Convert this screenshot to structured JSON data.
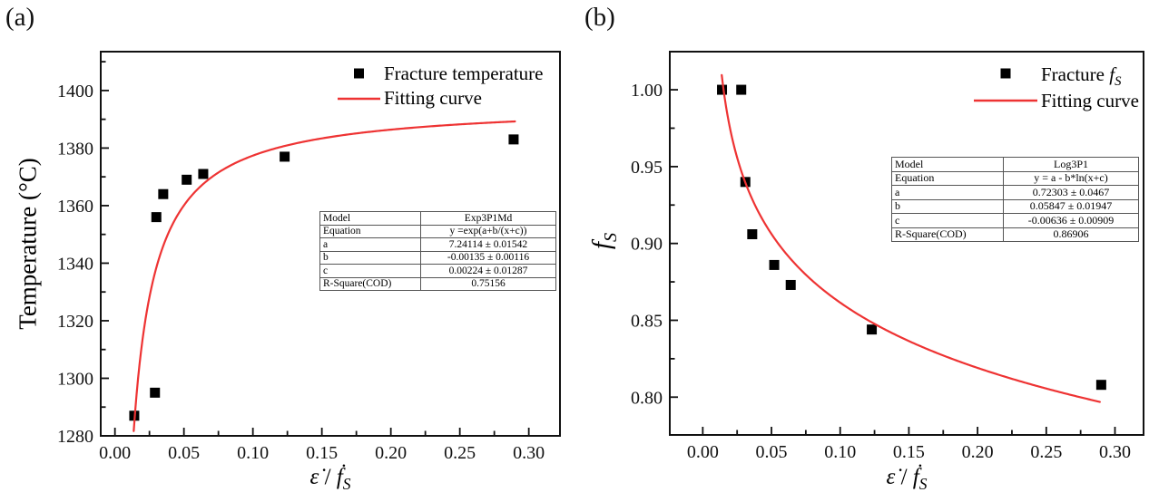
{
  "figure": {
    "background": "#ffffff",
    "accent_red": "#ee3333",
    "marker_color": "#000000",
    "panels": [
      {
        "id": "a",
        "label": "(a)",
        "y_axis_title": {
          "segments": [
            {
              "t": "plain",
              "s": "Temperature (°C)"
            }
          ]
        },
        "x_axis_title": {
          "segments": [
            {
              "t": "i",
              "s": "ε̇"
            },
            {
              "t": "plain",
              "s": " / "
            },
            {
              "t": "i",
              "s": "ḟ"
            },
            {
              "t": "isub",
              "s": "S"
            }
          ]
        },
        "legend": [
          {
            "type": "scatter",
            "label": "Fracture temperature",
            "segments": [
              {
                "t": "plain",
                "s": "Fracture temperature"
              }
            ]
          },
          {
            "type": "line",
            "label": "Fitting curve",
            "segments": [
              {
                "t": "plain",
                "s": "Fitting curve"
              }
            ]
          }
        ],
        "param_table": {
          "rows": [
            [
              "Model",
              "Exp3P1Md"
            ],
            [
              "Equation",
              "y =exp(a+b/(x+c))"
            ],
            [
              "a",
              "7.24114 ± 0.01542"
            ],
            [
              "b",
              "-0.00135 ± 0.00116"
            ],
            [
              "c",
              "0.00224 ± 0.01287"
            ],
            [
              "R-Square(COD)",
              "0.75156"
            ]
          ]
        }
      },
      {
        "id": "b",
        "label": "(b)",
        "y_axis_title": {
          "segments": [
            {
              "t": "i",
              "s": "f"
            },
            {
              "t": "isub",
              "s": "S"
            }
          ]
        },
        "x_axis_title": {
          "segments": [
            {
              "t": "i",
              "s": "ε̇"
            },
            {
              "t": "plain",
              "s": " / "
            },
            {
              "t": "i",
              "s": "ḟ"
            },
            {
              "t": "isub",
              "s": "S"
            }
          ]
        },
        "legend": [
          {
            "type": "scatter",
            "label": "Fracture fS",
            "segments": [
              {
                "t": "plain",
                "s": "Fracture "
              },
              {
                "t": "i",
                "s": "f"
              },
              {
                "t": "isub",
                "s": "S"
              }
            ]
          },
          {
            "type": "line",
            "label": "Fitting curve",
            "segments": [
              {
                "t": "plain",
                "s": "Fitting curve"
              }
            ]
          }
        ],
        "param_table": {
          "rows": [
            [
              "Model",
              "Log3P1"
            ],
            [
              "Equation",
              "y = a - b*ln(x+c)"
            ],
            [
              "a",
              "0.72303 ± 0.0467"
            ],
            [
              "b",
              "0.05847 ± 0.01947"
            ],
            [
              "c",
              "-0.00636 ± 0.00909"
            ],
            [
              "R-Square(COD)",
              "0.86906"
            ]
          ]
        }
      }
    ]
  },
  "chart_data": [
    {
      "type": "scatter",
      "panel": "a",
      "title": "",
      "xlabel": "ε̇ / ḟS",
      "ylabel": "Temperature (°C)",
      "xlim": [
        -0.0103,
        0.3226
      ],
      "ylim": [
        1280,
        1413.5
      ],
      "grid": false,
      "legend_position": "top-right-inside",
      "x_ticks": {
        "values": [
          0,
          0.05,
          0.1,
          0.15,
          0.2,
          0.25,
          0.3
        ],
        "labels": [
          "0.00",
          "0.05",
          "0.10",
          "0.15",
          "0.20",
          "0.25",
          "0.30"
        ],
        "minor": [
          0.025,
          0.075,
          0.125,
          0.175,
          0.225,
          0.275
        ]
      },
      "y_ticks": {
        "values": [
          1280,
          1300,
          1320,
          1340,
          1360,
          1380,
          1400
        ],
        "labels": [
          "1280",
          "1300",
          "1320",
          "1340",
          "1360",
          "1380",
          "1400"
        ],
        "minor": [
          1290,
          1310,
          1330,
          1350,
          1370,
          1390,
          1410
        ]
      },
      "series": [
        {
          "name": "Fracture temperature",
          "kind": "scatter",
          "marker": "square",
          "color": "#000000",
          "points": [
            [
              0.014,
              1287
            ],
            [
              0.029,
              1295
            ],
            [
              0.03,
              1356
            ],
            [
              0.035,
              1364
            ],
            [
              0.052,
              1369
            ],
            [
              0.064,
              1371
            ],
            [
              0.123,
              1377
            ],
            [
              0.289,
              1383
            ]
          ]
        },
        {
          "name": "Fitting curve",
          "kind": "function",
          "color": "#ee3333",
          "equation": "y = exp(a + b/(x+c))",
          "fn": "exp3p1md",
          "params": {
            "a": 7.24114,
            "b": -0.00135,
            "c": 0.00224
          },
          "x_range": [
            0.0136,
            0.29
          ]
        }
      ]
    },
    {
      "type": "scatter",
      "panel": "b",
      "title": "",
      "xlabel": "ε̇ / ḟS",
      "ylabel": "fS",
      "xlim": [
        -0.024,
        0.3208
      ],
      "ylim": [
        0.7754,
        1.0248
      ],
      "grid": false,
      "legend_position": "top-right-inside",
      "x_ticks": {
        "values": [
          0,
          0.05,
          0.1,
          0.15,
          0.2,
          0.25,
          0.3
        ],
        "labels": [
          "0.00",
          "0.05",
          "0.10",
          "0.15",
          "0.20",
          "0.25",
          "0.30"
        ],
        "minor": [
          0.025,
          0.075,
          0.125,
          0.175,
          0.225,
          0.275
        ]
      },
      "y_ticks": {
        "values": [
          0.8,
          0.85,
          0.9,
          0.95,
          1.0
        ],
        "labels": [
          "0.80",
          "0.85",
          "0.90",
          "0.95",
          "1.00"
        ],
        "minor": [
          0.825,
          0.875,
          0.925,
          0.975
        ]
      },
      "series": [
        {
          "name": "Fracture fS",
          "kind": "scatter",
          "marker": "square",
          "color": "#000000",
          "points": [
            [
              0.014,
              1.0
            ],
            [
              0.028,
              1.0
            ],
            [
              0.031,
              0.94
            ],
            [
              0.036,
              0.906
            ],
            [
              0.052,
              0.886
            ],
            [
              0.064,
              0.873
            ],
            [
              0.123,
              0.844
            ],
            [
              0.29,
              0.808
            ]
          ]
        },
        {
          "name": "Fitting curve",
          "kind": "function",
          "color": "#ee3333",
          "equation": "y = a - b*ln(x+c)",
          "fn": "log3p1",
          "params": {
            "a": 0.72303,
            "b": 0.05847,
            "c": -0.00636
          },
          "x_range": [
            0.0138,
            0.289
          ]
        }
      ]
    }
  ]
}
